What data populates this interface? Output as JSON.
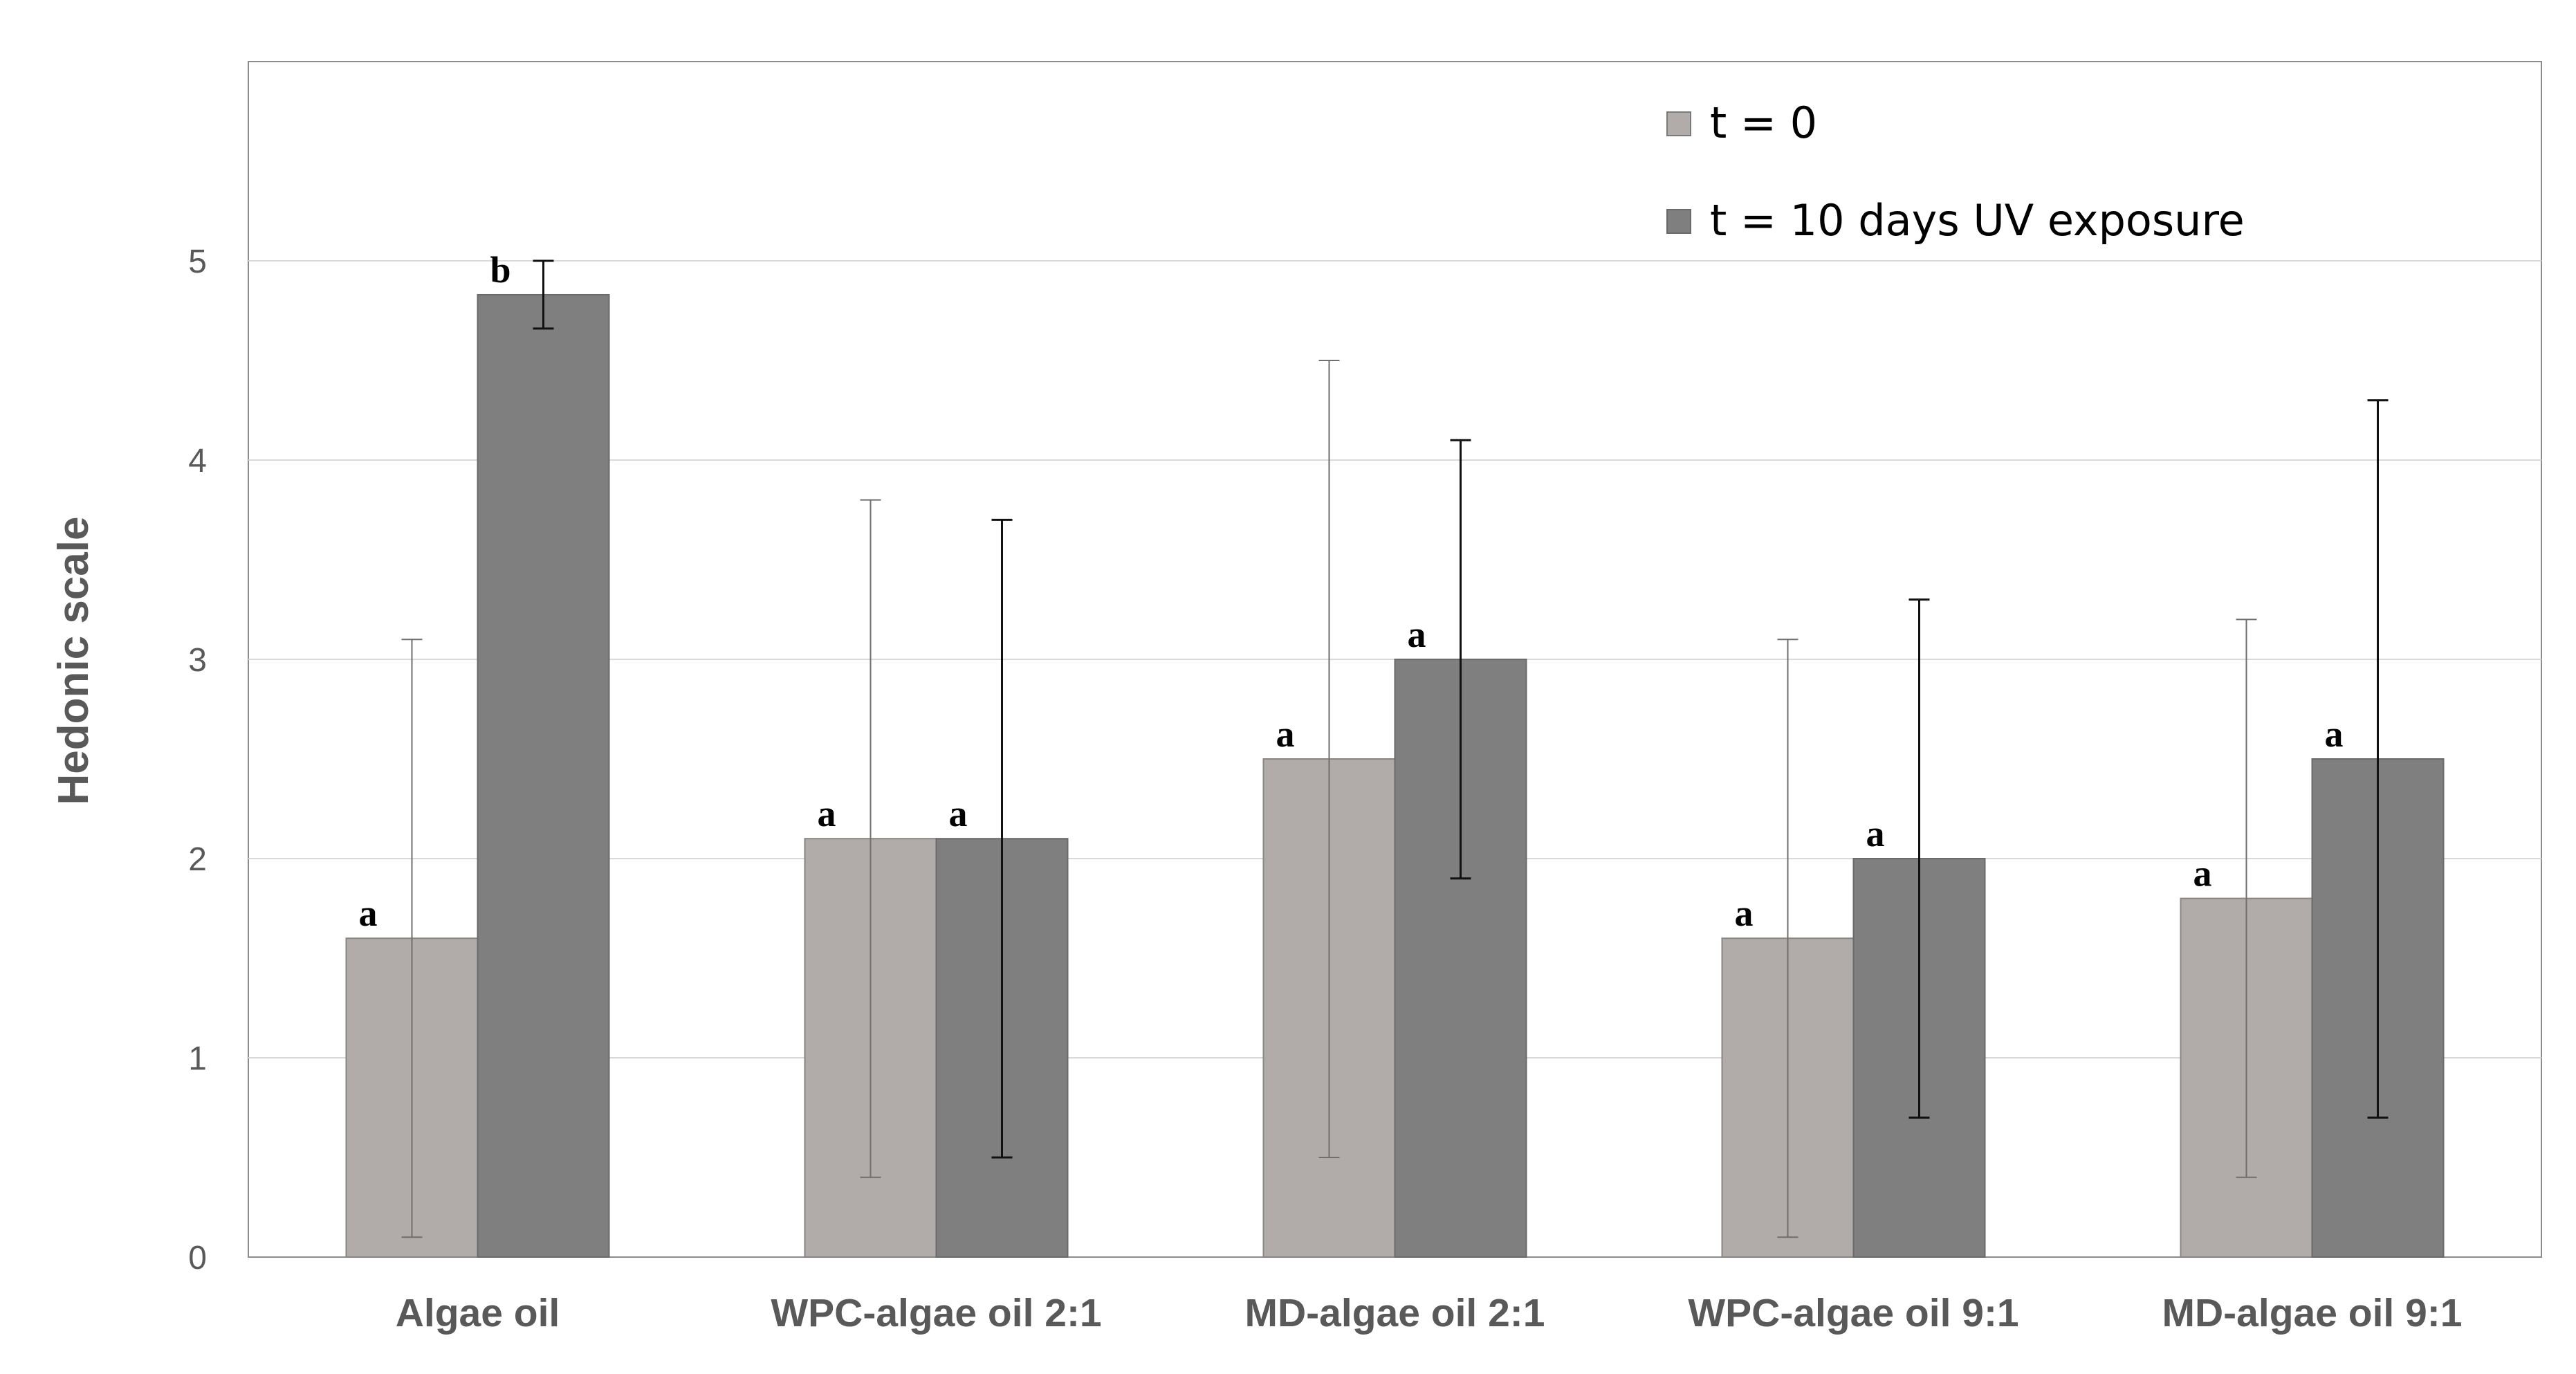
{
  "chart_data": {
    "type": "bar",
    "title": "",
    "xlabel": "",
    "ylabel": "Hedonic scale",
    "ylim": [
      0,
      6
    ],
    "yticks": [
      0,
      1,
      2,
      3,
      4,
      5
    ],
    "grid": true,
    "legend_position": "top-right",
    "categories": [
      "Algae oil",
      "WPC-algae oil 2:1",
      "MD-algae oil 2:1",
      "WPC-algae oil 9:1",
      "MD-algae oil 9:1"
    ],
    "series": [
      {
        "name": "t = 0",
        "color": "#b1aca9",
        "values": [
          1.6,
          2.1,
          2.5,
          1.6,
          1.8
        ],
        "error_low": [
          0.1,
          0.4,
          0.5,
          0.1,
          0.4
        ],
        "error_high": [
          3.1,
          3.8,
          4.5,
          3.1,
          3.2
        ],
        "sig_letters": [
          "a",
          "a",
          "a",
          "a",
          "a"
        ]
      },
      {
        "name": "t = 10 days UV exposure",
        "color": "#7f7f7f",
        "values": [
          4.83,
          2.1,
          3.0,
          2.0,
          2.5
        ],
        "error_low": [
          4.66,
          0.5,
          1.9,
          0.7,
          0.7
        ],
        "error_high": [
          5.0,
          3.7,
          4.1,
          3.3,
          4.3
        ],
        "sig_letters": [
          "b",
          "a",
          "a",
          "a",
          "a"
        ]
      }
    ]
  }
}
